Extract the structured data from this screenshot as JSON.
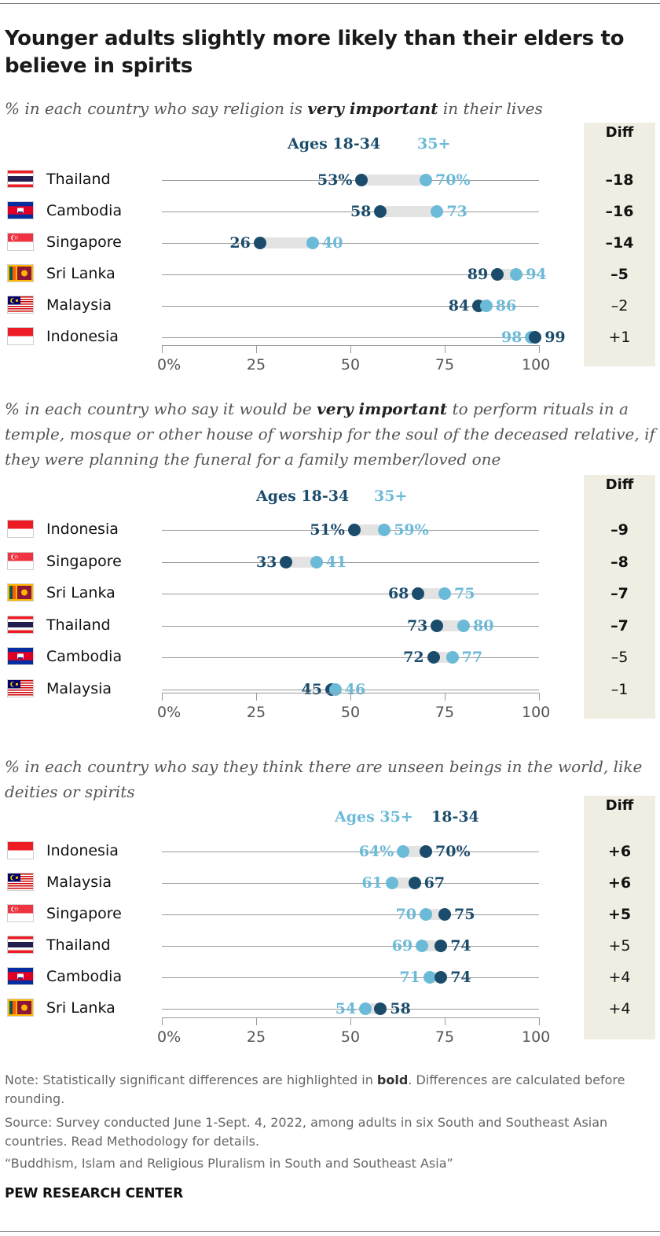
{
  "title": "Younger adults slightly more likely than their elders to believe in spirits",
  "diff_header": "Diff",
  "ticks": [
    0,
    25,
    50,
    75,
    100
  ],
  "tick_labels": [
    "0%",
    "25",
    "50",
    "75",
    "100"
  ],
  "colors": {
    "younger": "#1c4c6c",
    "older": "#6bbad8",
    "bar": "#e3e3e3",
    "diff_bg": "#f0eee3"
  },
  "chart_data": [
    {
      "type": "dot",
      "subtitle": {
        "before": "% in each country who say religion is ",
        "emph": "very important",
        "after": " in their lives"
      },
      "legend": {
        "first": "Ages 18-34",
        "second": "35+"
      },
      "legend_order": [
        "younger",
        "older"
      ],
      "xlim": [
        0,
        100
      ],
      "rows": [
        {
          "country": "Thailand",
          "flag": "thailand",
          "younger": 53,
          "older": 70,
          "younger_label": "53%",
          "older_label": "70%",
          "diff": "–18",
          "sig": true
        },
        {
          "country": "Cambodia",
          "flag": "cambodia",
          "younger": 58,
          "older": 73,
          "younger_label": "58",
          "older_label": "73",
          "diff": "–16",
          "sig": true
        },
        {
          "country": "Singapore",
          "flag": "singapore",
          "younger": 26,
          "older": 40,
          "younger_label": "26",
          "older_label": "40",
          "diff": "–14",
          "sig": true
        },
        {
          "country": "Sri Lanka",
          "flag": "srilanka",
          "younger": 89,
          "older": 94,
          "younger_label": "89",
          "older_label": "94",
          "diff": "–5",
          "sig": true
        },
        {
          "country": "Malaysia",
          "flag": "malaysia",
          "younger": 84,
          "older": 86,
          "younger_label": "84",
          "older_label": "86",
          "diff": "–2",
          "sig": false
        },
        {
          "country": "Indonesia",
          "flag": "indonesia",
          "younger": 99,
          "older": 98,
          "younger_label": "99",
          "older_label": "98",
          "diff": "+1",
          "sig": false
        }
      ]
    },
    {
      "type": "dot",
      "subtitle": {
        "before": "% in each country who say it would be ",
        "emph": "very important",
        "after": " to perform rituals in a temple, mosque or other house of worship for the soul of the deceased relative, if they were planning the funeral for a family member/loved one"
      },
      "legend": {
        "first": "Ages 18-34",
        "second": "35+"
      },
      "legend_order": [
        "younger",
        "older"
      ],
      "xlim": [
        0,
        100
      ],
      "rows": [
        {
          "country": "Indonesia",
          "flag": "indonesia",
          "younger": 51,
          "older": 59,
          "younger_label": "51%",
          "older_label": "59%",
          "diff": "–9",
          "sig": true
        },
        {
          "country": "Singapore",
          "flag": "singapore",
          "younger": 33,
          "older": 41,
          "younger_label": "33",
          "older_label": "41",
          "diff": "–8",
          "sig": true
        },
        {
          "country": "Sri Lanka",
          "flag": "srilanka",
          "younger": 68,
          "older": 75,
          "younger_label": "68",
          "older_label": "75",
          "diff": "–7",
          "sig": true
        },
        {
          "country": "Thailand",
          "flag": "thailand",
          "younger": 73,
          "older": 80,
          "younger_label": "73",
          "older_label": "80",
          "diff": "–7",
          "sig": true
        },
        {
          "country": "Cambodia",
          "flag": "cambodia",
          "younger": 72,
          "older": 77,
          "younger_label": "72",
          "older_label": "77",
          "diff": "–5",
          "sig": false
        },
        {
          "country": "Malaysia",
          "flag": "malaysia",
          "younger": 45,
          "older": 46,
          "younger_label": "45",
          "older_label": "46",
          "diff": "–1",
          "sig": false
        }
      ]
    },
    {
      "type": "dot",
      "subtitle": {
        "before": "% in each country who say they think there are unseen beings in the world, like deities or spirits",
        "emph": "",
        "after": ""
      },
      "legend": {
        "first": "Ages 35+",
        "second": "18-34"
      },
      "legend_order": [
        "older",
        "younger"
      ],
      "xlim": [
        0,
        100
      ],
      "rows": [
        {
          "country": "Indonesia",
          "flag": "indonesia",
          "younger": 70,
          "older": 64,
          "younger_label": "70%",
          "older_label": "64%",
          "diff": "+6",
          "sig": true
        },
        {
          "country": "Malaysia",
          "flag": "malaysia",
          "younger": 67,
          "older": 61,
          "younger_label": "67",
          "older_label": "61",
          "diff": "+6",
          "sig": true
        },
        {
          "country": "Singapore",
          "flag": "singapore",
          "younger": 75,
          "older": 70,
          "younger_label": "75",
          "older_label": "70",
          "diff": "+5",
          "sig": true
        },
        {
          "country": "Thailand",
          "flag": "thailand",
          "younger": 74,
          "older": 69,
          "younger_label": "74",
          "older_label": "69",
          "diff": "+5",
          "sig": false
        },
        {
          "country": "Cambodia",
          "flag": "cambodia",
          "younger": 74,
          "older": 71,
          "younger_label": "74",
          "older_label": "71",
          "diff": "+4",
          "sig": false
        },
        {
          "country": "Sri Lanka",
          "flag": "srilanka",
          "younger": 58,
          "older": 54,
          "younger_label": "58",
          "older_label": "54",
          "diff": "+4",
          "sig": false
        }
      ]
    }
  ],
  "note": {
    "before": "Note: Statistically significant differences are highlighted in ",
    "bold": "bold",
    "after": ". Differences are calculated before rounding."
  },
  "source": "Source: Survey conducted June 1-Sept. 4, 2022, among adults in six South and Southeast Asian countries. Read Methodology for details.",
  "report": "“Buddhism, Islam and Religious Pluralism in South and Southeast Asia”",
  "brand": "PEW RESEARCH CENTER"
}
